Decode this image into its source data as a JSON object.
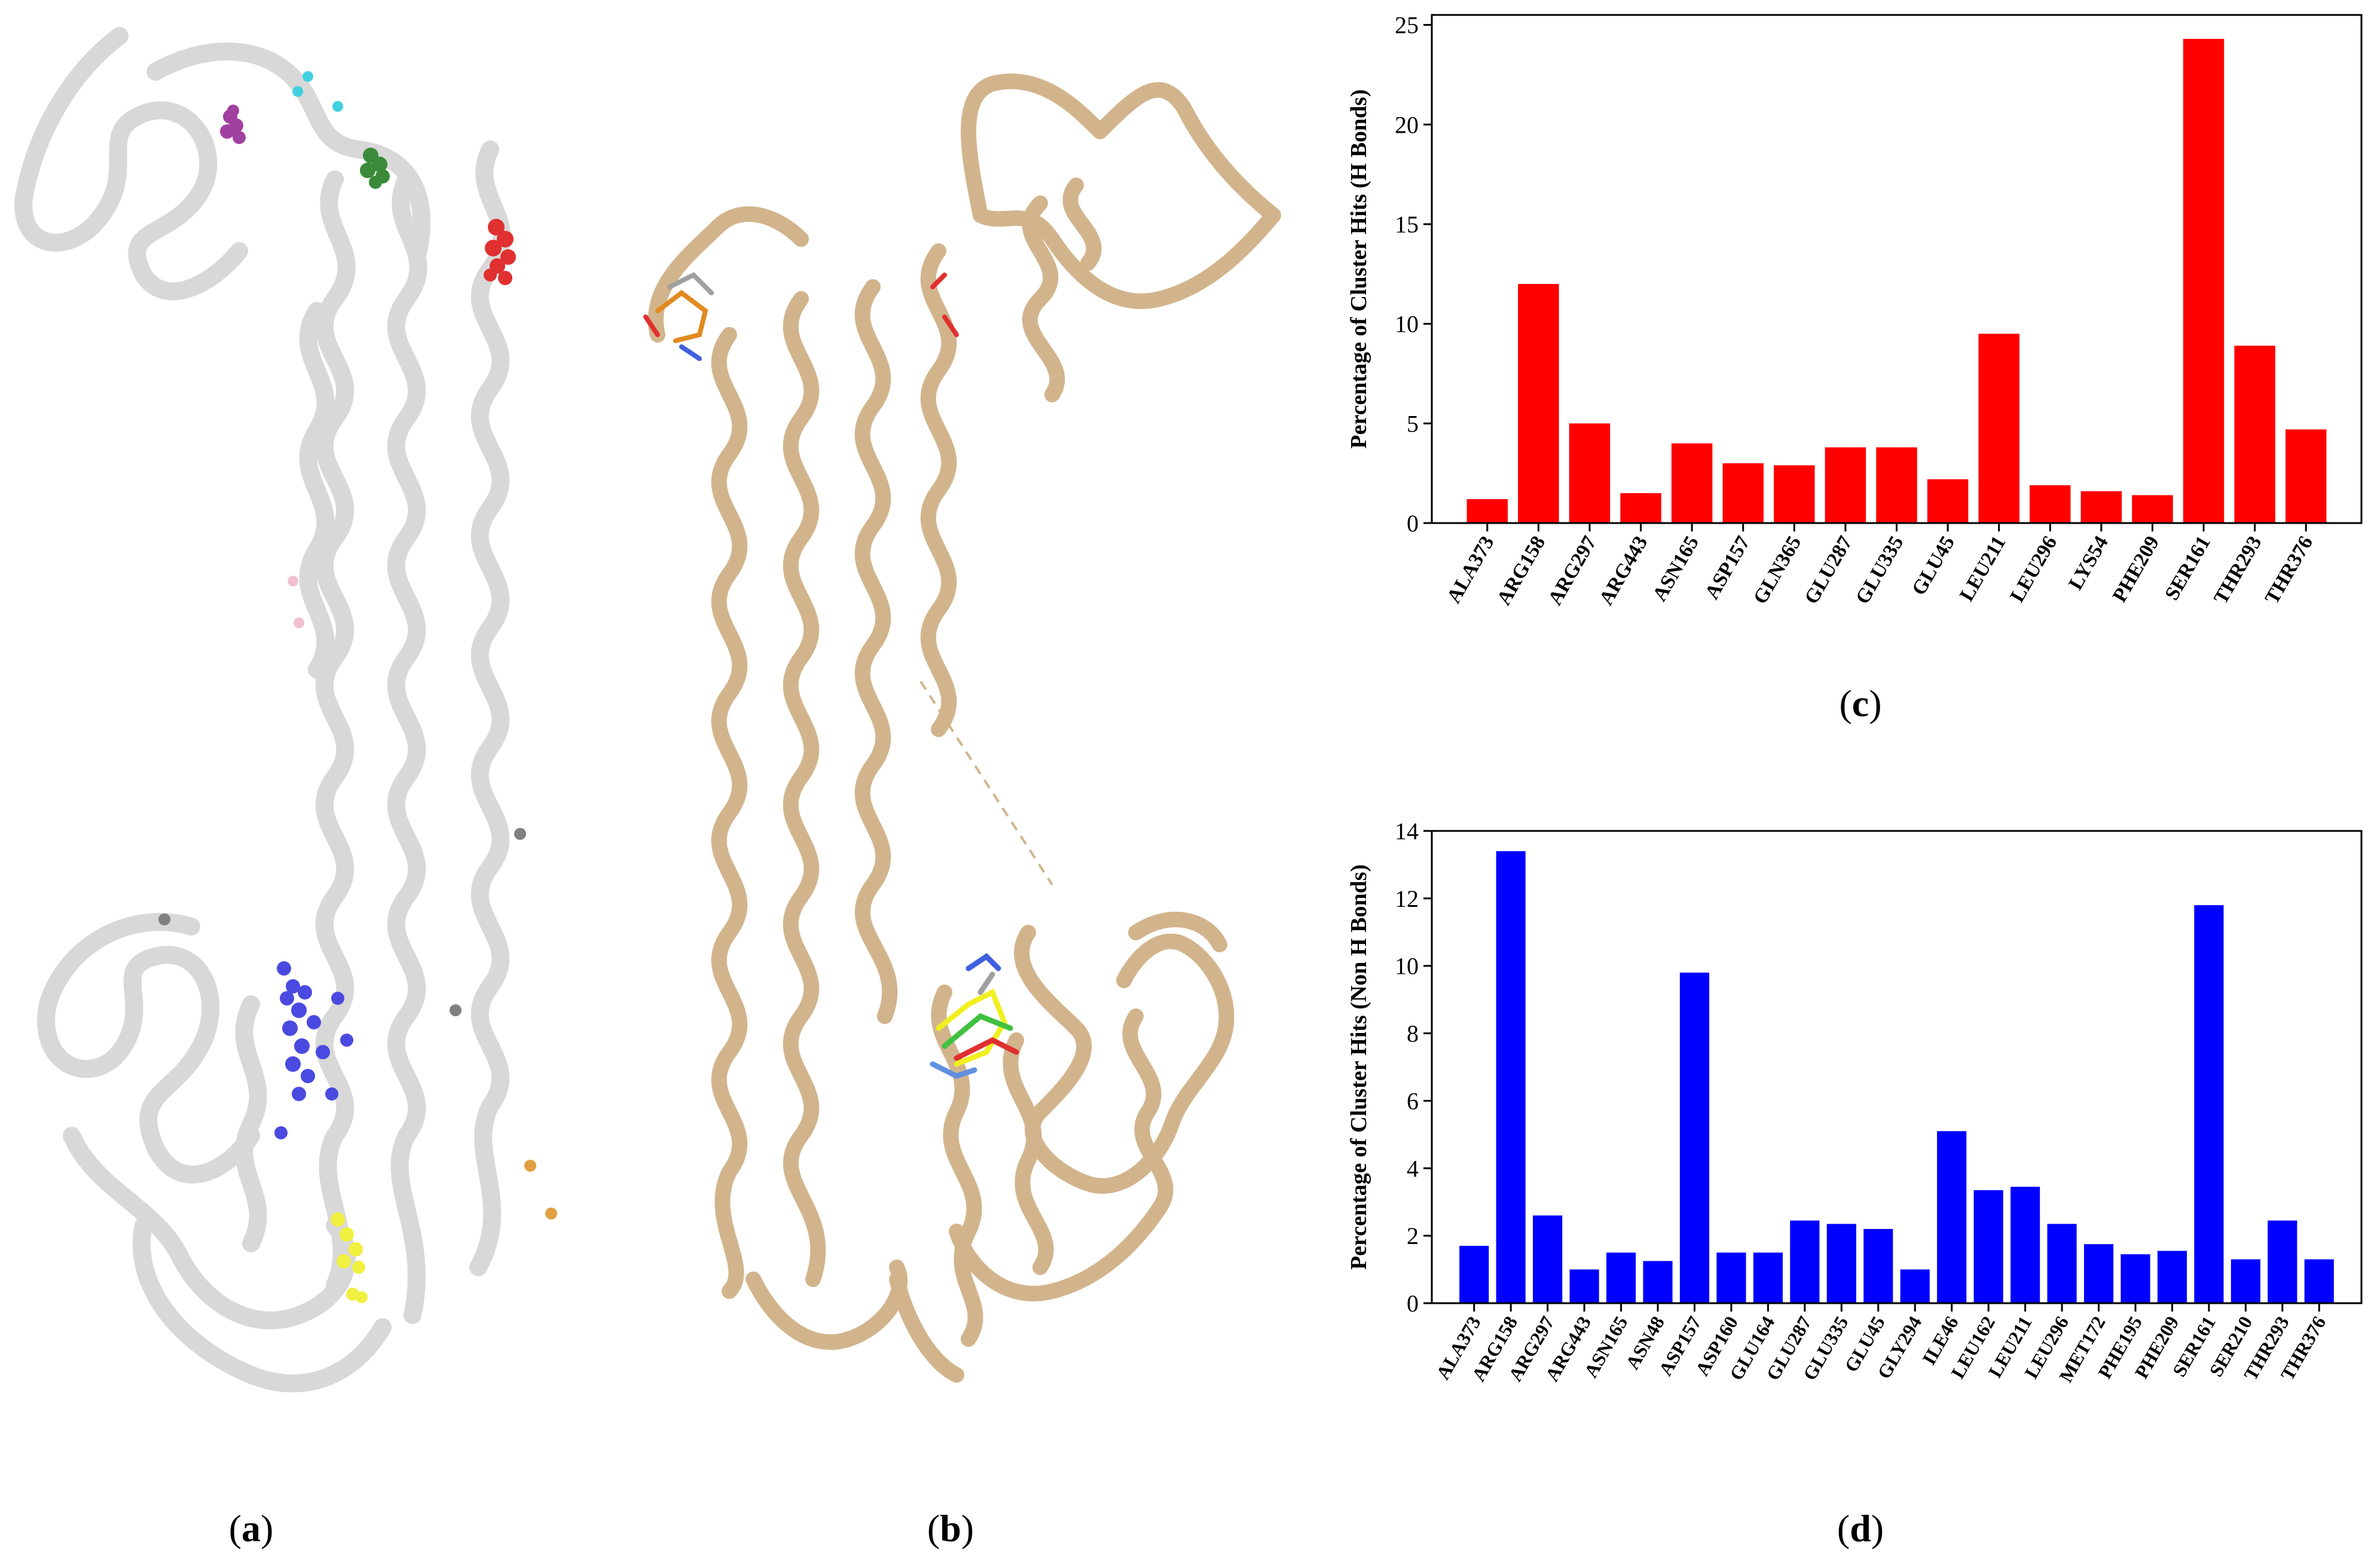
{
  "labels": {
    "a": {
      "open": "(",
      "letter": "a",
      "close": ")"
    },
    "b": {
      "open": "(",
      "letter": "b",
      "close": ")"
    },
    "c": {
      "open": "(",
      "letter": "c",
      "close": ")"
    },
    "d": {
      "open": "(",
      "letter": "d",
      "close": ")"
    }
  },
  "colors": {
    "ribbon_a": "#d6d6d6",
    "ribbon_b": "#d2b48c",
    "bars_c": "#ff0000",
    "bars_d": "#0000ff"
  },
  "chart_data": [
    {
      "type": "bar",
      "panel": "c",
      "categories": [
        "ALA373",
        "ARG158",
        "ARG297",
        "ARG443",
        "ASN165",
        "ASP157",
        "GLN365",
        "GLU287",
        "GLU335",
        "GLU45",
        "LEU211",
        "LEU296",
        "LYS54",
        "PHE209",
        "SER161",
        "THR293",
        "THR376"
      ],
      "values": [
        1.2,
        12.0,
        5.0,
        1.5,
        4.0,
        3.0,
        2.9,
        3.8,
        3.8,
        2.2,
        9.5,
        1.9,
        1.6,
        1.4,
        24.3,
        8.9,
        4.7
      ],
      "xlabel": "",
      "ylabel": "Percentage of Cluster Hits (H Bonds)",
      "ylim": [
        0,
        25.5
      ],
      "yticks": [
        0,
        5,
        10,
        15,
        20,
        25
      ],
      "color": "#ff0000",
      "grid": false
    },
    {
      "type": "bar",
      "panel": "d",
      "categories": [
        "ALA373",
        "ARG158",
        "ARG297",
        "ARG443",
        "ASN165",
        "ASN48",
        "ASP157",
        "ASP160",
        "GLU164",
        "GLU287",
        "GLU335",
        "GLU45",
        "GLY294",
        "ILE46",
        "LEU162",
        "LEU211",
        "LEU296",
        "MET172",
        "PHE195",
        "PHE209",
        "SER161",
        "SER210",
        "THR293",
        "THR376"
      ],
      "values": [
        1.7,
        13.4,
        2.6,
        1.0,
        1.5,
        1.25,
        9.8,
        1.5,
        1.5,
        2.45,
        2.35,
        2.2,
        1.0,
        5.1,
        3.35,
        3.45,
        2.35,
        1.75,
        1.45,
        1.55,
        11.8,
        1.3,
        2.45,
        1.3
      ],
      "xlabel": "",
      "ylabel": "Percentage of Cluster Hits (Non H Bonds)",
      "ylim": [
        0,
        14
      ],
      "yticks": [
        0,
        2,
        4,
        6,
        8,
        10,
        12,
        14
      ],
      "color": "#0000ff",
      "grid": false
    }
  ]
}
